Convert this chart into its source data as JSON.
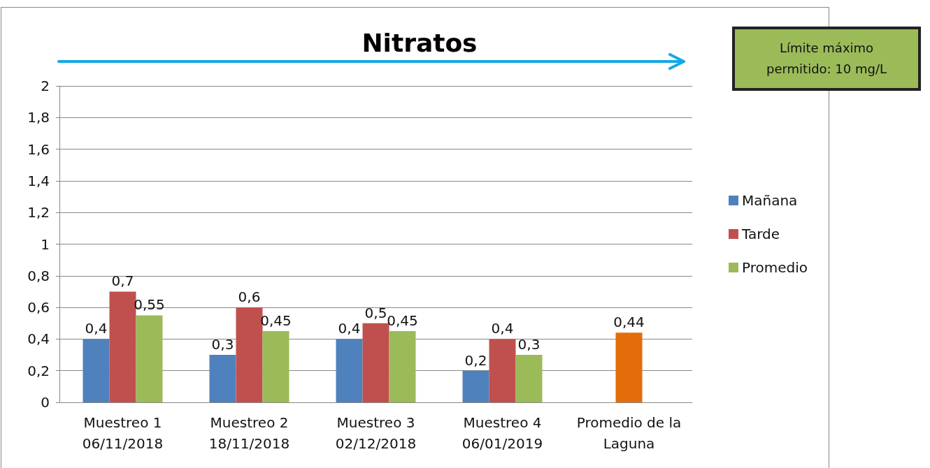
{
  "chart_data": {
    "type": "bar",
    "title": "Nitratos",
    "categories": [
      "Muestreo 1\n06/11/2018",
      "Muestreo 2\n18/11/2018",
      "Muestreo 3\n02/12/2018",
      "Muestreo 4\n06/01/2019",
      "Promedio de la\nLaguna"
    ],
    "series": [
      {
        "name": "Mañana",
        "color": "#4f81bd",
        "values": [
          0.4,
          0.3,
          0.4,
          0.2,
          null
        ],
        "value_labels": [
          "0,4",
          "0,3",
          "0,4",
          "0,2",
          null
        ]
      },
      {
        "name": "Tarde",
        "color": "#c0504d",
        "values": [
          0.7,
          0.6,
          0.5,
          0.4,
          null
        ],
        "value_labels": [
          "0,7",
          "0,6",
          "0,5",
          "0,4",
          null
        ]
      },
      {
        "name": "Promedio",
        "color": "#9bbb59",
        "values": [
          0.55,
          0.45,
          0.45,
          0.3,
          null
        ],
        "value_labels": [
          "0,55",
          "0,45",
          "0,45",
          "0,3",
          null
        ]
      },
      {
        "color": "#e46c0a",
        "values": [
          null,
          null,
          null,
          null,
          0.44
        ],
        "value_labels": [
          null,
          null,
          null,
          null,
          "0,44"
        ]
      }
    ],
    "ylim": [
      0,
      2
    ],
    "yticks": [
      0,
      {
        "value": 0.2,
        "label": "0,2"
      },
      {
        "value": 0.4,
        "label": "0,4"
      },
      {
        "value": 0.6,
        "label": "0,6"
      },
      {
        "value": 0.8,
        "label": "0,8"
      },
      1,
      {
        "value": 1.2,
        "label": "1,2"
      },
      {
        "value": 1.4,
        "label": "1,4"
      },
      {
        "value": 1.6,
        "label": "1,6"
      },
      {
        "value": 1.8,
        "label": "1,8"
      },
      2
    ],
    "grid": "y",
    "legend": "right",
    "annotations": [
      "Límite máximo permitido: 10 mg/L"
    ]
  }
}
